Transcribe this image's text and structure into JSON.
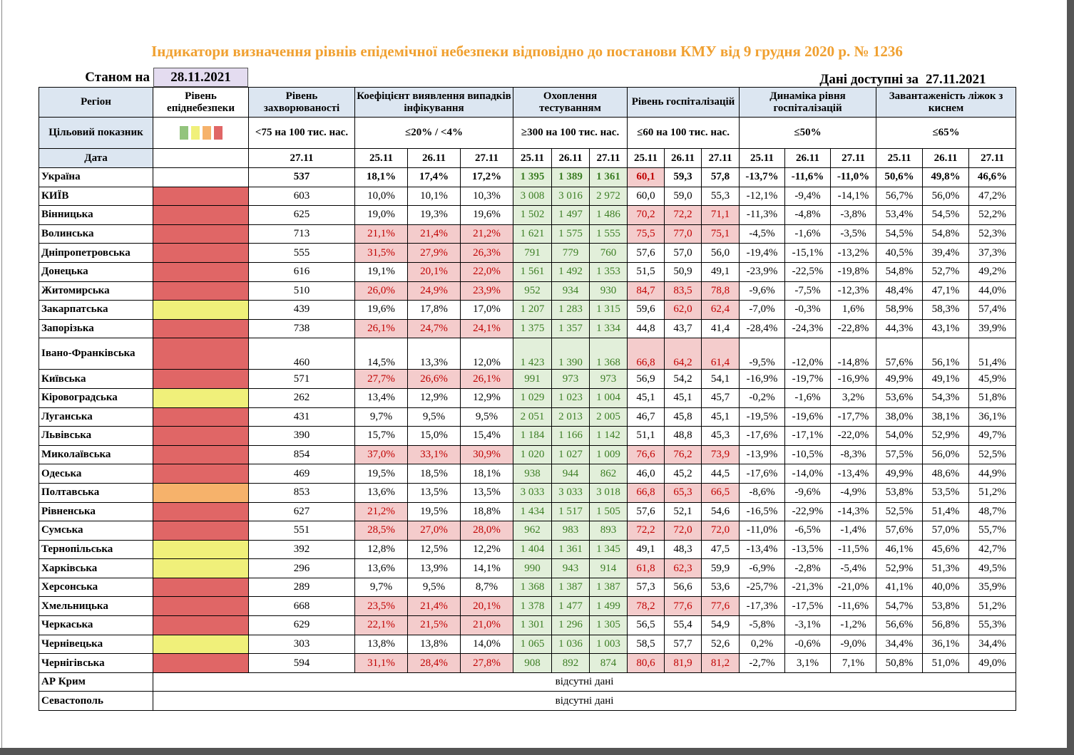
{
  "title": "Індикатори визначення рівнів епідемічної небезпеки відповідно до постанови КМУ від 9 грудня 2020 р. № 1236",
  "as_of_label": "Станом на",
  "as_of_date": "28.11.2021",
  "available_label": "Дані доступні за",
  "available_date": "27.11.2021",
  "table": {
    "region_header": "Регіон",
    "level_header": "Рівень епіднебезпеки",
    "target_label": "Цільовий показник",
    "date_label": "Дата",
    "level_icons": [
      "#93c47d",
      "#f0f07a",
      "#f6b26b",
      "#e06666"
    ],
    "groups": [
      {
        "title": "Рівень захворюваності",
        "target": "<75 на 100 тис. нас.",
        "dates": [
          "27.11"
        ]
      },
      {
        "title": "Коефіцієнт виявлення випадків інфікування",
        "target": "≤20% / <4%",
        "dates": [
          "25.11",
          "26.11",
          "27.11"
        ]
      },
      {
        "title": "Охоплення тестуванням",
        "target": "≥300 на 100 тис. нас.",
        "dates": [
          "25.11",
          "26.11",
          "27.11"
        ],
        "fill": "#e2efda",
        "text_color": "#3b7d23"
      },
      {
        "title": "Рівень госпіталізацій",
        "target": "≤60 на 100 тис. нас.",
        "dates": [
          "25.11",
          "26.11",
          "27.11"
        ]
      },
      {
        "title": "Динаміка рівня госпіталізацій",
        "target": "≤50%",
        "dates": [
          "25.11",
          "26.11",
          "27.11"
        ]
      },
      {
        "title": "Завантаженість ліжок з киснем",
        "target": "≤65%",
        "dates": [
          "25.11",
          "26.11",
          "27.11"
        ]
      }
    ],
    "highlight_fill": "#f4cccc",
    "highlight_text": "#c00000",
    "rows": [
      {
        "region": "Україна",
        "bold": true,
        "values": [
          "537",
          "18,1%",
          "17,4%",
          "17,2%",
          "1 395",
          "1 389",
          "1 361",
          "60,1",
          "59,3",
          "57,8",
          "-13,7%",
          "-11,6%",
          "-11,0%",
          "50,6%",
          "49,8%",
          "46,6%"
        ],
        "highlight": [
          7
        ]
      },
      {
        "region": "КИЇВ",
        "level_color": "#e06666",
        "values": [
          "603",
          "10,0%",
          "10,1%",
          "10,3%",
          "3 008",
          "3 016",
          "2 972",
          "60,0",
          "59,0",
          "55,3",
          "-12,1%",
          "-9,4%",
          "-14,1%",
          "56,7%",
          "56,0%",
          "47,2%"
        ],
        "highlight": []
      },
      {
        "region": "Вінницька",
        "level_color": "#e06666",
        "values": [
          "625",
          "19,0%",
          "19,3%",
          "19,6%",
          "1 502",
          "1 497",
          "1 486",
          "70,2",
          "72,2",
          "71,1",
          "-11,3%",
          "-4,8%",
          "-3,8%",
          "53,4%",
          "54,5%",
          "52,2%"
        ],
        "highlight": [
          7,
          8,
          9
        ]
      },
      {
        "region": "Волинська",
        "level_color": "#e06666",
        "values": [
          "713",
          "21,1%",
          "21,4%",
          "21,2%",
          "1 621",
          "1 575",
          "1 555",
          "75,5",
          "77,0",
          "75,1",
          "-4,5%",
          "-1,6%",
          "-3,5%",
          "54,5%",
          "54,8%",
          "52,3%"
        ],
        "highlight": [
          1,
          2,
          3,
          7,
          8,
          9
        ]
      },
      {
        "region": "Дніпропетровська",
        "level_color": "#e06666",
        "values": [
          "555",
          "31,5%",
          "27,9%",
          "26,3%",
          "791",
          "779",
          "760",
          "57,6",
          "57,0",
          "56,0",
          "-19,4%",
          "-15,1%",
          "-13,2%",
          "40,5%",
          "39,4%",
          "37,3%"
        ],
        "highlight": [
          1,
          2,
          3
        ]
      },
      {
        "region": "Донецька",
        "level_color": "#e06666",
        "values": [
          "616",
          "19,1%",
          "20,1%",
          "22,0%",
          "1 561",
          "1 492",
          "1 353",
          "51,5",
          "50,9",
          "49,1",
          "-23,9%",
          "-22,5%",
          "-19,8%",
          "54,8%",
          "52,7%",
          "49,2%"
        ],
        "highlight": [
          2,
          3
        ]
      },
      {
        "region": "Житомирська",
        "level_color": "#e06666",
        "values": [
          "510",
          "26,0%",
          "24,9%",
          "23,9%",
          "952",
          "934",
          "930",
          "84,7",
          "83,5",
          "78,8",
          "-9,6%",
          "-7,5%",
          "-12,3%",
          "48,4%",
          "47,1%",
          "44,0%"
        ],
        "highlight": [
          1,
          2,
          3,
          7,
          8,
          9
        ]
      },
      {
        "region": "Закарпатська",
        "level_color": "#f0f07a",
        "values": [
          "439",
          "19,6%",
          "17,8%",
          "17,0%",
          "1 207",
          "1 283",
          "1 315",
          "59,6",
          "62,0",
          "62,4",
          "-7,0%",
          "-0,3%",
          "1,6%",
          "58,9%",
          "58,3%",
          "57,4%"
        ],
        "highlight": [
          8,
          9
        ]
      },
      {
        "region": "Запорізька",
        "level_color": "#e06666",
        "values": [
          "738",
          "26,1%",
          "24,7%",
          "24,1%",
          "1 375",
          "1 357",
          "1 334",
          "44,8",
          "43,7",
          "41,4",
          "-28,4%",
          "-24,3%",
          "-22,8%",
          "44,3%",
          "43,1%",
          "39,9%"
        ],
        "highlight": [
          1,
          2,
          3
        ]
      },
      {
        "region": "Івано-Франківська",
        "tall": true,
        "level_color": "#e06666",
        "values": [
          "460",
          "14,5%",
          "13,3%",
          "12,0%",
          "1 423",
          "1 390",
          "1 368",
          "66,8",
          "64,2",
          "61,4",
          "-9,5%",
          "-12,0%",
          "-14,8%",
          "57,6%",
          "56,1%",
          "51,4%"
        ],
        "highlight": [
          7,
          8,
          9
        ]
      },
      {
        "region": "Київська",
        "level_color": "#e06666",
        "values": [
          "571",
          "27,7%",
          "26,6%",
          "26,1%",
          "991",
          "973",
          "973",
          "56,9",
          "54,2",
          "54,1",
          "-16,9%",
          "-19,7%",
          "-16,9%",
          "49,9%",
          "49,1%",
          "45,9%"
        ],
        "highlight": [
          1,
          2,
          3
        ]
      },
      {
        "region": "Кіровоградська",
        "level_color": "#f0f07a",
        "values": [
          "262",
          "13,4%",
          "12,9%",
          "12,9%",
          "1 029",
          "1 023",
          "1 004",
          "45,1",
          "45,1",
          "45,7",
          "-0,2%",
          "-1,6%",
          "3,2%",
          "53,6%",
          "54,3%",
          "51,8%"
        ],
        "highlight": []
      },
      {
        "region": "Луганська",
        "level_color": "#e06666",
        "values": [
          "431",
          "9,7%",
          "9,5%",
          "9,5%",
          "2 051",
          "2 013",
          "2 005",
          "46,7",
          "45,8",
          "45,1",
          "-19,5%",
          "-19,6%",
          "-17,7%",
          "38,0%",
          "38,1%",
          "36,1%"
        ],
        "highlight": []
      },
      {
        "region": "Львівська",
        "level_color": "#e06666",
        "values": [
          "390",
          "15,7%",
          "15,0%",
          "15,4%",
          "1 184",
          "1 166",
          "1 142",
          "51,1",
          "48,8",
          "45,3",
          "-17,6%",
          "-17,1%",
          "-22,0%",
          "54,0%",
          "52,9%",
          "49,7%"
        ],
        "highlight": []
      },
      {
        "region": "Миколаївська",
        "level_color": "#e06666",
        "values": [
          "854",
          "37,0%",
          "33,1%",
          "30,9%",
          "1 020",
          "1 027",
          "1 009",
          "76,6",
          "76,2",
          "73,9",
          "-13,9%",
          "-10,5%",
          "-8,3%",
          "57,5%",
          "56,0%",
          "52,5%"
        ],
        "highlight": [
          1,
          2,
          3,
          7,
          8,
          9
        ]
      },
      {
        "region": "Одеська",
        "level_color": "#e06666",
        "values": [
          "469",
          "19,5%",
          "18,5%",
          "18,1%",
          "938",
          "944",
          "862",
          "46,0",
          "45,2",
          "44,5",
          "-17,6%",
          "-14,0%",
          "-13,4%",
          "49,9%",
          "48,6%",
          "44,9%"
        ],
        "highlight": []
      },
      {
        "region": "Полтавська",
        "level_color": "#f6b26b",
        "values": [
          "853",
          "13,6%",
          "13,5%",
          "13,5%",
          "3 033",
          "3 033",
          "3 018",
          "66,8",
          "65,3",
          "66,5",
          "-8,6%",
          "-9,6%",
          "-4,9%",
          "53,8%",
          "53,5%",
          "51,2%"
        ],
        "highlight": [
          7,
          8,
          9
        ]
      },
      {
        "region": "Рівненська",
        "level_color": "#e06666",
        "values": [
          "627",
          "21,2%",
          "19,5%",
          "18,8%",
          "1 434",
          "1 517",
          "1 505",
          "57,6",
          "52,1",
          "54,6",
          "-16,5%",
          "-22,9%",
          "-14,3%",
          "52,5%",
          "51,4%",
          "48,7%"
        ],
        "highlight": [
          1
        ]
      },
      {
        "region": "Сумська",
        "level_color": "#e06666",
        "values": [
          "551",
          "28,5%",
          "27,0%",
          "28,0%",
          "962",
          "983",
          "893",
          "72,2",
          "72,0",
          "72,0",
          "-11,0%",
          "-6,5%",
          "-1,4%",
          "57,6%",
          "57,0%",
          "55,7%"
        ],
        "highlight": [
          1,
          2,
          3,
          7,
          8,
          9
        ]
      },
      {
        "region": "Тернопільська",
        "level_color": "#f0f07a",
        "values": [
          "392",
          "12,8%",
          "12,5%",
          "12,2%",
          "1 404",
          "1 361",
          "1 345",
          "49,1",
          "48,3",
          "47,5",
          "-13,4%",
          "-13,5%",
          "-11,5%",
          "46,1%",
          "45,6%",
          "42,7%"
        ],
        "highlight": []
      },
      {
        "region": "Харківська",
        "level_color": "#f0f07a",
        "values": [
          "296",
          "13,6%",
          "13,9%",
          "14,1%",
          "990",
          "943",
          "914",
          "61,8",
          "62,3",
          "59,9",
          "-6,9%",
          "-2,8%",
          "-5,4%",
          "52,9%",
          "51,3%",
          "49,5%"
        ],
        "highlight": [
          7,
          8
        ]
      },
      {
        "region": "Херсонська",
        "level_color": "#e06666",
        "values": [
          "289",
          "9,7%",
          "9,5%",
          "8,7%",
          "1 368",
          "1 387",
          "1 387",
          "57,3",
          "56,6",
          "53,6",
          "-25,7%",
          "-21,3%",
          "-21,0%",
          "41,1%",
          "40,0%",
          "35,9%"
        ],
        "highlight": []
      },
      {
        "region": "Хмельницька",
        "level_color": "#e06666",
        "values": [
          "668",
          "23,5%",
          "21,4%",
          "20,1%",
          "1 378",
          "1 477",
          "1 499",
          "78,2",
          "77,6",
          "77,6",
          "-17,3%",
          "-17,5%",
          "-11,6%",
          "54,7%",
          "53,8%",
          "51,2%"
        ],
        "highlight": [
          1,
          2,
          3,
          7,
          8,
          9
        ]
      },
      {
        "region": "Черкаська",
        "level_color": "#e06666",
        "values": [
          "629",
          "22,1%",
          "21,5%",
          "21,0%",
          "1 301",
          "1 296",
          "1 305",
          "56,5",
          "55,4",
          "54,9",
          "-5,8%",
          "-3,1%",
          "-1,2%",
          "56,6%",
          "56,8%",
          "55,3%"
        ],
        "highlight": [
          1,
          2,
          3
        ]
      },
      {
        "region": "Чернівецька",
        "level_color": "#f0f07a",
        "values": [
          "303",
          "13,8%",
          "13,8%",
          "14,0%",
          "1 065",
          "1 036",
          "1 003",
          "58,5",
          "57,7",
          "52,6",
          "0,2%",
          "-0,6%",
          "-9,0%",
          "34,4%",
          "36,1%",
          "34,4%"
        ],
        "highlight": []
      },
      {
        "region": "Чернігівська",
        "level_color": "#e06666",
        "values": [
          "594",
          "31,1%",
          "28,4%",
          "27,8%",
          "908",
          "892",
          "874",
          "80,6",
          "81,9",
          "81,2",
          "-2,7%",
          "3,1%",
          "7,1%",
          "50,8%",
          "51,0%",
          "49,0%"
        ],
        "highlight": [
          1,
          2,
          3,
          7,
          8,
          9
        ]
      }
    ],
    "missing": [
      {
        "region": "АР Крим",
        "note": "відсутні дані"
      },
      {
        "region": "Севастополь",
        "note": "відсутні дані"
      }
    ]
  }
}
